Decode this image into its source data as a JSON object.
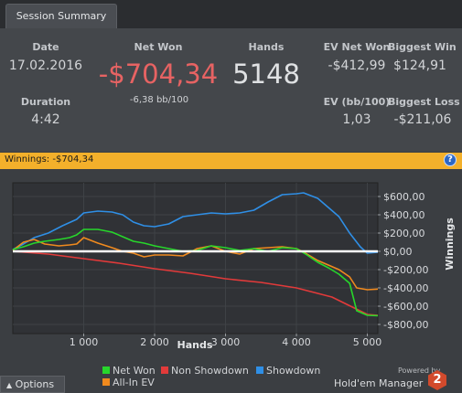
{
  "tab": {
    "label": "Session Summary"
  },
  "summary": {
    "date_label": "Date",
    "date_value": "17.02.2016",
    "net_won_label": "Net Won",
    "net_won_value": "-$704,34",
    "net_won_bb": "-6,38 bb/100",
    "hands_label": "Hands",
    "hands_value": "5148",
    "ev_net_won_label": "EV Net Won",
    "ev_net_won_value": "-$412,99",
    "biggest_win_label": "Biggest Win",
    "biggest_win_value": "$124,91",
    "duration_label": "Duration",
    "duration_value": "4:42",
    "ev_bb_label": "EV (bb/100)",
    "ev_bb_value": "1,03",
    "biggest_loss_label": "Biggest Loss",
    "biggest_loss_value": "-$211,06"
  },
  "winnings_bar": {
    "text": "Winnings: -$704,34",
    "help": "?"
  },
  "options_label": "Options",
  "branding": {
    "powered": "Powered by",
    "product": "Hold'em Manager",
    "logo": "2"
  },
  "colors": {
    "net_won": "#27d62b",
    "non_showdown": "#e23a3a",
    "showdown": "#2f8fe6",
    "all_in_ev": "#f08a1e",
    "zero_line": "#ffffff",
    "summary_negative": "#e76363"
  },
  "chart_data": {
    "type": "line",
    "xlabel": "Hands",
    "ylabel": "Winnings",
    "xlim": [
      0,
      5148
    ],
    "ylim": [
      -900,
      750
    ],
    "x_ticks": [
      1000,
      2000,
      3000,
      4000,
      5000
    ],
    "x_tick_labels": [
      "1 000",
      "2 000",
      "3 000",
      "4 000",
      "5 000"
    ],
    "y_ticks": [
      600,
      400,
      200,
      0,
      -200,
      -400,
      -600,
      -800
    ],
    "y_tick_labels": [
      "$600,00",
      "$400,00",
      "$200,00",
      "$0,00",
      "-$200,00",
      "-$400,00",
      "-$600,00",
      "-$800,00"
    ],
    "legend": [
      {
        "name": "Net Won",
        "color": "#27d62b"
      },
      {
        "name": "Non Showdown",
        "color": "#e23a3a"
      },
      {
        "name": "Showdown",
        "color": "#2f8fe6"
      },
      {
        "name": "All-In EV",
        "color": "#f08a1e"
      }
    ],
    "series": [
      {
        "name": "Net Won",
        "color": "#27d62b",
        "x": [
          0,
          150,
          300,
          450,
          650,
          800,
          900,
          1000,
          1200,
          1400,
          1550,
          1700,
          1850,
          2000,
          2200,
          2400,
          2600,
          2800,
          3000,
          3200,
          3400,
          3600,
          3800,
          4000,
          4150,
          4300,
          4450,
          4600,
          4750,
          4850,
          5000,
          5148
        ],
        "y": [
          20,
          50,
          90,
          110,
          130,
          150,
          180,
          240,
          240,
          210,
          160,
          110,
          90,
          60,
          30,
          0,
          10,
          60,
          40,
          10,
          30,
          0,
          40,
          30,
          -40,
          -120,
          -180,
          -250,
          -350,
          -650,
          -700,
          -704
        ]
      },
      {
        "name": "Non Showdown",
        "color": "#e23a3a",
        "x": [
          0,
          500,
          1000,
          1500,
          2000,
          2500,
          3000,
          3500,
          4000,
          4500,
          5000,
          5148
        ],
        "y": [
          0,
          -30,
          -80,
          -130,
          -190,
          -240,
          -300,
          -340,
          -400,
          -500,
          -690,
          -700
        ]
      },
      {
        "name": "Showdown",
        "color": "#2f8fe6",
        "x": [
          0,
          150,
          300,
          500,
          700,
          900,
          1000,
          1200,
          1400,
          1550,
          1700,
          1850,
          2000,
          2200,
          2400,
          2600,
          2800,
          3000,
          3200,
          3400,
          3600,
          3800,
          4000,
          4100,
          4300,
          4450,
          4600,
          4750,
          4900,
          5000,
          5148
        ],
        "y": [
          20,
          80,
          150,
          200,
          280,
          350,
          420,
          440,
          430,
          400,
          320,
          280,
          270,
          300,
          380,
          400,
          420,
          410,
          420,
          450,
          540,
          620,
          630,
          640,
          580,
          480,
          380,
          200,
          50,
          -20,
          -10
        ]
      },
      {
        "name": "All-In EV",
        "color": "#f08a1e",
        "x": [
          0,
          150,
          300,
          450,
          650,
          800,
          900,
          1000,
          1200,
          1400,
          1550,
          1700,
          1850,
          2000,
          2200,
          2400,
          2600,
          2800,
          3000,
          3200,
          3400,
          3600,
          3800,
          4000,
          4150,
          4300,
          4450,
          4600,
          4750,
          4850,
          5000,
          5148
        ],
        "y": [
          10,
          100,
          130,
          80,
          60,
          70,
          80,
          150,
          90,
          40,
          0,
          -20,
          -60,
          -40,
          -40,
          -50,
          30,
          60,
          0,
          -30,
          30,
          40,
          50,
          30,
          -30,
          -100,
          -150,
          -200,
          -280,
          -400,
          -420,
          -413
        ]
      },
      {
        "name": "Zero",
        "color": "#ffffff",
        "x": [
          0,
          5148
        ],
        "y": [
          0,
          0
        ]
      }
    ]
  }
}
